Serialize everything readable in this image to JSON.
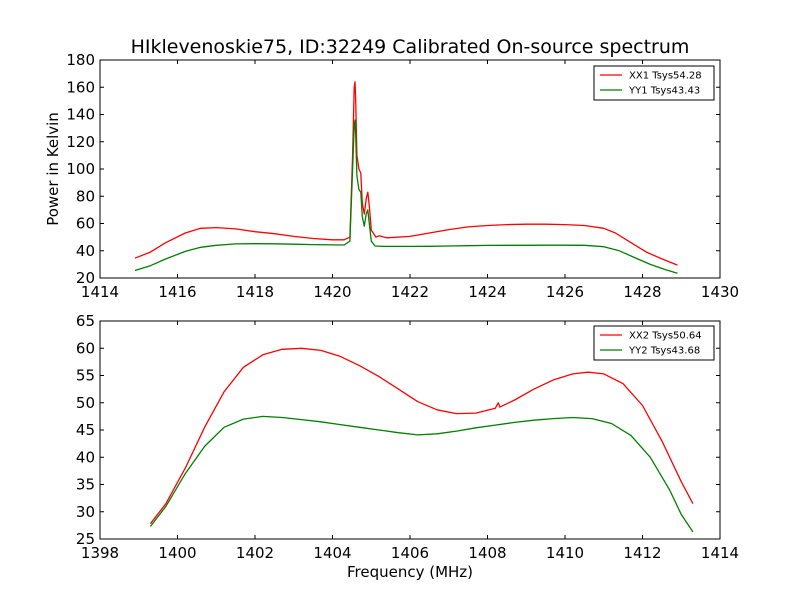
{
  "figure": {
    "title": "HIklevenoskie75, ID:32249 Calibrated On-source spectrum",
    "xlabel": "Frequency (MHz)"
  },
  "chart_data": [
    {
      "type": "line",
      "ylabel": "Power in Kelvin",
      "xlim": [
        1414,
        1430
      ],
      "ylim": [
        20,
        180
      ],
      "xticks": [
        1414,
        1416,
        1418,
        1420,
        1422,
        1424,
        1426,
        1428,
        1430
      ],
      "yticks": [
        20,
        40,
        60,
        80,
        100,
        120,
        140,
        160,
        180
      ],
      "legend": "top-right",
      "series": [
        {
          "name": "XX1 Tsys54.28",
          "color": "#ff0000",
          "points": [
            [
              1414.9,
              34.5
            ],
            [
              1415.3,
              39
            ],
            [
              1415.7,
              46
            ],
            [
              1416.2,
              53
            ],
            [
              1416.6,
              56.5
            ],
            [
              1417.0,
              57
            ],
            [
              1417.5,
              56
            ],
            [
              1418.0,
              54
            ],
            [
              1418.5,
              52.5
            ],
            [
              1419.0,
              50.5
            ],
            [
              1419.5,
              49
            ],
            [
              1420.0,
              48
            ],
            [
              1420.3,
              48
            ],
            [
              1420.45,
              50
            ],
            [
              1420.52,
              110
            ],
            [
              1420.56,
              160
            ],
            [
              1420.58,
              164
            ],
            [
              1420.6,
              150
            ],
            [
              1420.63,
              110
            ],
            [
              1420.68,
              100
            ],
            [
              1420.73,
              97
            ],
            [
              1420.77,
              75
            ],
            [
              1420.82,
              67
            ],
            [
              1420.87,
              78
            ],
            [
              1420.91,
              83
            ],
            [
              1420.95,
              73
            ],
            [
              1421.0,
              55
            ],
            [
              1421.05,
              53
            ],
            [
              1421.12,
              50
            ],
            [
              1421.2,
              51
            ],
            [
              1421.4,
              49.5
            ],
            [
              1422.0,
              50.5
            ],
            [
              1422.5,
              53
            ],
            [
              1423.0,
              55.5
            ],
            [
              1423.5,
              57.5
            ],
            [
              1424.0,
              58.5
            ],
            [
              1424.5,
              59.2
            ],
            [
              1425.0,
              59.5
            ],
            [
              1425.5,
              59.5
            ],
            [
              1426.0,
              59.2
            ],
            [
              1426.5,
              58.5
            ],
            [
              1427.0,
              56.5
            ],
            [
              1427.3,
              53
            ],
            [
              1427.7,
              46
            ],
            [
              1428.1,
              39
            ],
            [
              1428.5,
              34
            ],
            [
              1428.9,
              29.5
            ]
          ]
        },
        {
          "name": "YY1 Tsys43.43",
          "color": "#008000",
          "points": [
            [
              1414.9,
              25.5
            ],
            [
              1415.3,
              29
            ],
            [
              1415.7,
              34
            ],
            [
              1416.2,
              39.5
            ],
            [
              1416.6,
              42.5
            ],
            [
              1417.0,
              44
            ],
            [
              1417.5,
              45
            ],
            [
              1418.0,
              45.2
            ],
            [
              1418.5,
              45.1
            ],
            [
              1419.0,
              44.8
            ],
            [
              1419.5,
              44.5
            ],
            [
              1420.0,
              44.3
            ],
            [
              1420.3,
              44.2
            ],
            [
              1420.45,
              47
            ],
            [
              1420.52,
              100
            ],
            [
              1420.56,
              132
            ],
            [
              1420.58,
              136
            ],
            [
              1420.6,
              125
            ],
            [
              1420.63,
              95
            ],
            [
              1420.68,
              85
            ],
            [
              1420.73,
              83
            ],
            [
              1420.77,
              65
            ],
            [
              1420.82,
              58
            ],
            [
              1420.87,
              67
            ],
            [
              1420.91,
              70
            ],
            [
              1420.95,
              60
            ],
            [
              1421.0,
              47
            ],
            [
              1421.1,
              43.5
            ],
            [
              1421.3,
              43.2
            ],
            [
              1422.0,
              43.2
            ],
            [
              1422.5,
              43.3
            ],
            [
              1423.0,
              43.5
            ],
            [
              1423.5,
              43.7
            ],
            [
              1424.0,
              43.9
            ],
            [
              1424.5,
              44
            ],
            [
              1425.0,
              44
            ],
            [
              1425.5,
              44.1
            ],
            [
              1426.0,
              44.1
            ],
            [
              1426.5,
              44
            ],
            [
              1427.0,
              43
            ],
            [
              1427.4,
              40
            ],
            [
              1427.8,
              35
            ],
            [
              1428.2,
              30
            ],
            [
              1428.6,
              26
            ],
            [
              1428.9,
              23.5
            ]
          ]
        }
      ]
    },
    {
      "type": "line",
      "ylabel": "",
      "xlim": [
        1398,
        1414
      ],
      "ylim": [
        25,
        65
      ],
      "xticks": [
        1398,
        1400,
        1402,
        1404,
        1406,
        1408,
        1410,
        1412,
        1414
      ],
      "yticks": [
        25,
        30,
        35,
        40,
        45,
        50,
        55,
        60,
        65
      ],
      "legend": "top-right",
      "series": [
        {
          "name": "XX2 Tsys50.64",
          "color": "#ff0000",
          "points": [
            [
              1399.3,
              27.8
            ],
            [
              1399.7,
              31.5
            ],
            [
              1400.2,
              38
            ],
            [
              1400.7,
              45.5
            ],
            [
              1401.2,
              52
            ],
            [
              1401.7,
              56.5
            ],
            [
              1402.2,
              58.8
            ],
            [
              1402.7,
              59.8
            ],
            [
              1403.2,
              60
            ],
            [
              1403.7,
              59.6
            ],
            [
              1404.2,
              58.5
            ],
            [
              1404.7,
              56.8
            ],
            [
              1405.2,
              54.8
            ],
            [
              1405.7,
              52.5
            ],
            [
              1406.2,
              50.2
            ],
            [
              1406.7,
              48.7
            ],
            [
              1407.2,
              48
            ],
            [
              1407.7,
              48.1
            ],
            [
              1408.2,
              49
            ],
            [
              1408.28,
              50
            ],
            [
              1408.32,
              49.2
            ],
            [
              1408.7,
              50.5
            ],
            [
              1409.2,
              52.5
            ],
            [
              1409.7,
              54.2
            ],
            [
              1410.2,
              55.3
            ],
            [
              1410.6,
              55.6
            ],
            [
              1411.0,
              55.3
            ],
            [
              1411.5,
              53.5
            ],
            [
              1412.0,
              49.5
            ],
            [
              1412.5,
              43
            ],
            [
              1413.0,
              35.5
            ],
            [
              1413.3,
              31.5
            ]
          ]
        },
        {
          "name": "YY2 Tsys43.68",
          "color": "#008000",
          "points": [
            [
              1399.3,
              27.3
            ],
            [
              1399.7,
              31
            ],
            [
              1400.2,
              37
            ],
            [
              1400.7,
              42
            ],
            [
              1401.2,
              45.5
            ],
            [
              1401.7,
              47
            ],
            [
              1402.2,
              47.5
            ],
            [
              1402.7,
              47.3
            ],
            [
              1403.2,
              46.9
            ],
            [
              1403.7,
              46.5
            ],
            [
              1404.2,
              46
            ],
            [
              1404.7,
              45.5
            ],
            [
              1405.2,
              45
            ],
            [
              1405.7,
              44.5
            ],
            [
              1406.2,
              44.1
            ],
            [
              1406.7,
              44.3
            ],
            [
              1407.2,
              44.8
            ],
            [
              1407.7,
              45.4
            ],
            [
              1408.2,
              45.9
            ],
            [
              1408.7,
              46.4
            ],
            [
              1409.2,
              46.8
            ],
            [
              1409.7,
              47.1
            ],
            [
              1410.2,
              47.3
            ],
            [
              1410.7,
              47.1
            ],
            [
              1411.2,
              46.2
            ],
            [
              1411.7,
              44
            ],
            [
              1412.2,
              40
            ],
            [
              1412.7,
              34
            ],
            [
              1413.0,
              29.5
            ],
            [
              1413.3,
              26.3
            ]
          ]
        }
      ]
    }
  ]
}
